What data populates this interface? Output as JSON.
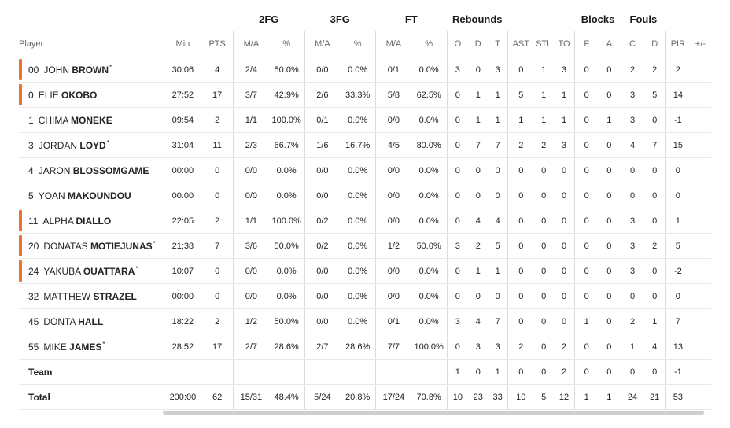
{
  "group_headers": {
    "fg2": "2FG",
    "fg3": "3FG",
    "ft": "FT",
    "rebounds": "Rebounds",
    "blocks": "Blocks",
    "fouls": "Fouls"
  },
  "columns": {
    "player": "Player",
    "min": "Min",
    "pts": "PTS",
    "fg2_ma": "M/A",
    "fg2_pct": "%",
    "fg3_ma": "M/A",
    "fg3_pct": "%",
    "ft_ma": "M/A",
    "ft_pct": "%",
    "reb_o": "O",
    "reb_d": "D",
    "reb_t": "T",
    "ast": "AST",
    "stl": "STL",
    "to": "TO",
    "blk_f": "F",
    "blk_a": "A",
    "foul_c": "C",
    "foul_d": "D",
    "pir": "PIR",
    "pm": "+/-"
  },
  "players": [
    {
      "starter": true,
      "num": "00",
      "first": "JOHN",
      "last": "BROWN",
      "star": "*",
      "min": "30:06",
      "pts": "4",
      "fg2_ma": "2/4",
      "fg2_pct": "50.0%",
      "fg3_ma": "0/0",
      "fg3_pct": "0.0%",
      "ft_ma": "0/1",
      "ft_pct": "0.0%",
      "o": "3",
      "d": "0",
      "t": "3",
      "ast": "0",
      "stl": "1",
      "to": "3",
      "bf": "0",
      "ba": "0",
      "fc": "2",
      "fd": "2",
      "pir": "2",
      "pm": ""
    },
    {
      "starter": true,
      "num": "0",
      "first": "ELIE",
      "last": "OKOBO",
      "star": "",
      "min": "27:52",
      "pts": "17",
      "fg2_ma": "3/7",
      "fg2_pct": "42.9%",
      "fg3_ma": "2/6",
      "fg3_pct": "33.3%",
      "ft_ma": "5/8",
      "ft_pct": "62.5%",
      "o": "0",
      "d": "1",
      "t": "1",
      "ast": "5",
      "stl": "1",
      "to": "1",
      "bf": "0",
      "ba": "0",
      "fc": "3",
      "fd": "5",
      "pir": "14",
      "pm": ""
    },
    {
      "starter": false,
      "num": "1",
      "first": "CHIMA",
      "last": "MONEKE",
      "star": "",
      "min": "09:54",
      "pts": "2",
      "fg2_ma": "1/1",
      "fg2_pct": "100.0%",
      "fg3_ma": "0/1",
      "fg3_pct": "0.0%",
      "ft_ma": "0/0",
      "ft_pct": "0.0%",
      "o": "0",
      "d": "1",
      "t": "1",
      "ast": "1",
      "stl": "1",
      "to": "1",
      "bf": "0",
      "ba": "1",
      "fc": "3",
      "fd": "0",
      "pir": "-1",
      "pm": ""
    },
    {
      "starter": false,
      "num": "3",
      "first": "JORDAN",
      "last": "LOYD",
      "star": "*",
      "min": "31:04",
      "pts": "11",
      "fg2_ma": "2/3",
      "fg2_pct": "66.7%",
      "fg3_ma": "1/6",
      "fg3_pct": "16.7%",
      "ft_ma": "4/5",
      "ft_pct": "80.0%",
      "o": "0",
      "d": "7",
      "t": "7",
      "ast": "2",
      "stl": "2",
      "to": "3",
      "bf": "0",
      "ba": "0",
      "fc": "4",
      "fd": "7",
      "pir": "15",
      "pm": ""
    },
    {
      "starter": false,
      "num": "4",
      "first": "JARON",
      "last": "BLOSSOMGAME",
      "star": "",
      "min": "00:00",
      "pts": "0",
      "fg2_ma": "0/0",
      "fg2_pct": "0.0%",
      "fg3_ma": "0/0",
      "fg3_pct": "0.0%",
      "ft_ma": "0/0",
      "ft_pct": "0.0%",
      "o": "0",
      "d": "0",
      "t": "0",
      "ast": "0",
      "stl": "0",
      "to": "0",
      "bf": "0",
      "ba": "0",
      "fc": "0",
      "fd": "0",
      "pir": "0",
      "pm": ""
    },
    {
      "starter": false,
      "num": "5",
      "first": "YOAN",
      "last": "MAKOUNDOU",
      "star": "",
      "min": "00:00",
      "pts": "0",
      "fg2_ma": "0/0",
      "fg2_pct": "0.0%",
      "fg3_ma": "0/0",
      "fg3_pct": "0.0%",
      "ft_ma": "0/0",
      "ft_pct": "0.0%",
      "o": "0",
      "d": "0",
      "t": "0",
      "ast": "0",
      "stl": "0",
      "to": "0",
      "bf": "0",
      "ba": "0",
      "fc": "0",
      "fd": "0",
      "pir": "0",
      "pm": ""
    },
    {
      "starter": true,
      "num": "11",
      "first": "ALPHA",
      "last": "DIALLO",
      "star": "",
      "min": "22:05",
      "pts": "2",
      "fg2_ma": "1/1",
      "fg2_pct": "100.0%",
      "fg3_ma": "0/2",
      "fg3_pct": "0.0%",
      "ft_ma": "0/0",
      "ft_pct": "0.0%",
      "o": "0",
      "d": "4",
      "t": "4",
      "ast": "0",
      "stl": "0",
      "to": "0",
      "bf": "0",
      "ba": "0",
      "fc": "3",
      "fd": "0",
      "pir": "1",
      "pm": ""
    },
    {
      "starter": true,
      "num": "20",
      "first": "DONATAS",
      "last": "MOTIEJUNAS",
      "star": "*",
      "min": "21:38",
      "pts": "7",
      "fg2_ma": "3/6",
      "fg2_pct": "50.0%",
      "fg3_ma": "0/2",
      "fg3_pct": "0.0%",
      "ft_ma": "1/2",
      "ft_pct": "50.0%",
      "o": "3",
      "d": "2",
      "t": "5",
      "ast": "0",
      "stl": "0",
      "to": "0",
      "bf": "0",
      "ba": "0",
      "fc": "3",
      "fd": "2",
      "pir": "5",
      "pm": ""
    },
    {
      "starter": true,
      "num": "24",
      "first": "YAKUBA",
      "last": "OUATTARA",
      "star": "*",
      "min": "10:07",
      "pts": "0",
      "fg2_ma": "0/0",
      "fg2_pct": "0.0%",
      "fg3_ma": "0/0",
      "fg3_pct": "0.0%",
      "ft_ma": "0/0",
      "ft_pct": "0.0%",
      "o": "0",
      "d": "1",
      "t": "1",
      "ast": "0",
      "stl": "0",
      "to": "0",
      "bf": "0",
      "ba": "0",
      "fc": "3",
      "fd": "0",
      "pir": "-2",
      "pm": ""
    },
    {
      "starter": false,
      "num": "32",
      "first": "MATTHEW",
      "last": "STRAZEL",
      "star": "",
      "min": "00:00",
      "pts": "0",
      "fg2_ma": "0/0",
      "fg2_pct": "0.0%",
      "fg3_ma": "0/0",
      "fg3_pct": "0.0%",
      "ft_ma": "0/0",
      "ft_pct": "0.0%",
      "o": "0",
      "d": "0",
      "t": "0",
      "ast": "0",
      "stl": "0",
      "to": "0",
      "bf": "0",
      "ba": "0",
      "fc": "0",
      "fd": "0",
      "pir": "0",
      "pm": ""
    },
    {
      "starter": false,
      "num": "45",
      "first": "DONTA",
      "last": "HALL",
      "star": "",
      "min": "18:22",
      "pts": "2",
      "fg2_ma": "1/2",
      "fg2_pct": "50.0%",
      "fg3_ma": "0/0",
      "fg3_pct": "0.0%",
      "ft_ma": "0/1",
      "ft_pct": "0.0%",
      "o": "3",
      "d": "4",
      "t": "7",
      "ast": "0",
      "stl": "0",
      "to": "0",
      "bf": "1",
      "ba": "0",
      "fc": "2",
      "fd": "1",
      "pir": "7",
      "pm": ""
    },
    {
      "starter": false,
      "num": "55",
      "first": "MIKE",
      "last": "JAMES",
      "star": "*",
      "min": "28:52",
      "pts": "17",
      "fg2_ma": "2/7",
      "fg2_pct": "28.6%",
      "fg3_ma": "2/7",
      "fg3_pct": "28.6%",
      "ft_ma": "7/7",
      "ft_pct": "100.0%",
      "o": "0",
      "d": "3",
      "t": "3",
      "ast": "2",
      "stl": "0",
      "to": "2",
      "bf": "0",
      "ba": "0",
      "fc": "1",
      "fd": "4",
      "pir": "13",
      "pm": ""
    }
  ],
  "team": {
    "label": "Team",
    "min": "",
    "pts": "",
    "fg2_ma": "",
    "fg2_pct": "",
    "fg3_ma": "",
    "fg3_pct": "",
    "ft_ma": "",
    "ft_pct": "",
    "o": "1",
    "d": "0",
    "t": "1",
    "ast": "0",
    "stl": "0",
    "to": "2",
    "bf": "0",
    "ba": "0",
    "fc": "0",
    "fd": "0",
    "pir": "-1",
    "pm": ""
  },
  "total": {
    "label": "Total",
    "min": "200:00",
    "pts": "62",
    "fg2_ma": "15/31",
    "fg2_pct": "48.4%",
    "fg3_ma": "5/24",
    "fg3_pct": "20.8%",
    "ft_ma": "17/24",
    "ft_pct": "70.8%",
    "o": "10",
    "d": "23",
    "t": "33",
    "ast": "10",
    "stl": "5",
    "to": "12",
    "bf": "1",
    "ba": "1",
    "fc": "24",
    "fd": "21",
    "pir": "53",
    "pm": ""
  },
  "colors": {
    "starter_marker": "#f07030"
  }
}
